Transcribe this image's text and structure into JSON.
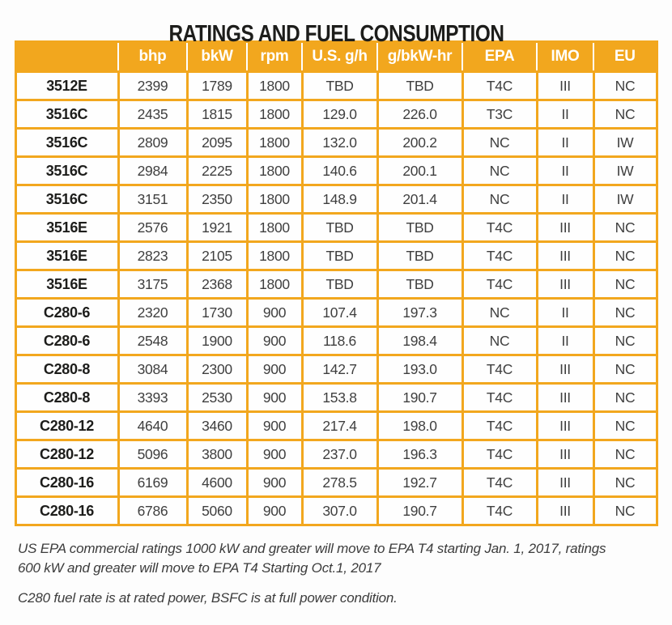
{
  "title": "RATINGS AND FUEL CONSUMPTION",
  "colors": {
    "gold": "#F2A71E",
    "header-text": "#FFFFFF",
    "title-color": "#1D1D1B",
    "value-color": "#3F3F3F"
  },
  "table": {
    "columns": [
      {
        "id": "model",
        "label": ""
      },
      {
        "id": "bhp",
        "label": "bhp"
      },
      {
        "id": "bkw",
        "label": "bkW"
      },
      {
        "id": "rpm",
        "label": "rpm"
      },
      {
        "id": "us-gh",
        "label": "U.S. g/h"
      },
      {
        "id": "g-bkw-hr",
        "label": "g/bkW-hr"
      },
      {
        "id": "epa",
        "label": "EPA"
      },
      {
        "id": "imo",
        "label": "IMO"
      },
      {
        "id": "eu",
        "label": "EU"
      }
    ],
    "rows": [
      [
        "3512E",
        "2399",
        "1789",
        "1800",
        "TBD",
        "TBD",
        "T4C",
        "III",
        "NC"
      ],
      [
        "3516C",
        "2435",
        "1815",
        "1800",
        "129.0",
        "226.0",
        "T3C",
        "II",
        "NC"
      ],
      [
        "3516C",
        "2809",
        "2095",
        "1800",
        "132.0",
        "200.2",
        "NC",
        "II",
        "IW"
      ],
      [
        "3516C",
        "2984",
        "2225",
        "1800",
        "140.6",
        "200.1",
        "NC",
        "II",
        "IW"
      ],
      [
        "3516C",
        "3151",
        "2350",
        "1800",
        "148.9",
        "201.4",
        "NC",
        "II",
        "IW"
      ],
      [
        "3516E",
        "2576",
        "1921",
        "1800",
        "TBD",
        "TBD",
        "T4C",
        "III",
        "NC"
      ],
      [
        "3516E",
        "2823",
        "2105",
        "1800",
        "TBD",
        "TBD",
        "T4C",
        "III",
        "NC"
      ],
      [
        "3516E",
        "3175",
        "2368",
        "1800",
        "TBD",
        "TBD",
        "T4C",
        "III",
        "NC"
      ],
      [
        "C280-6",
        "2320",
        "1730",
        "900",
        "107.4",
        "197.3",
        "NC",
        "II",
        "NC"
      ],
      [
        "C280-6",
        "2548",
        "1900",
        "900",
        "118.6",
        "198.4",
        "NC",
        "II",
        "NC"
      ],
      [
        "C280-8",
        "3084",
        "2300",
        "900",
        "142.7",
        "193.0",
        "T4C",
        "III",
        "NC"
      ],
      [
        "C280-8",
        "3393",
        "2530",
        "900",
        "153.8",
        "190.7",
        "T4C",
        "III",
        "NC"
      ],
      [
        "C280-12",
        "4640",
        "3460",
        "900",
        "217.4",
        "198.0",
        "T4C",
        "III",
        "NC"
      ],
      [
        "C280-12",
        "5096",
        "3800",
        "900",
        "237.0",
        "196.3",
        "T4C",
        "III",
        "NC"
      ],
      [
        "C280-16",
        "6169",
        "4600",
        "900",
        "278.5",
        "192.7",
        "T4C",
        "III",
        "NC"
      ],
      [
        "C280-16",
        "6786",
        "5060",
        "900",
        "307.0",
        "190.7",
        "T4C",
        "III",
        "NC"
      ]
    ]
  },
  "footnotes": [
    "US EPA commercial ratings 1000 kW and greater will move to EPA T4 starting Jan. 1, 2017, ratings 600 kW and greater will move to EPA T4 Starting Oct.1, 2017",
    "C280 fuel rate is at rated power, BSFC is at full power condition."
  ]
}
